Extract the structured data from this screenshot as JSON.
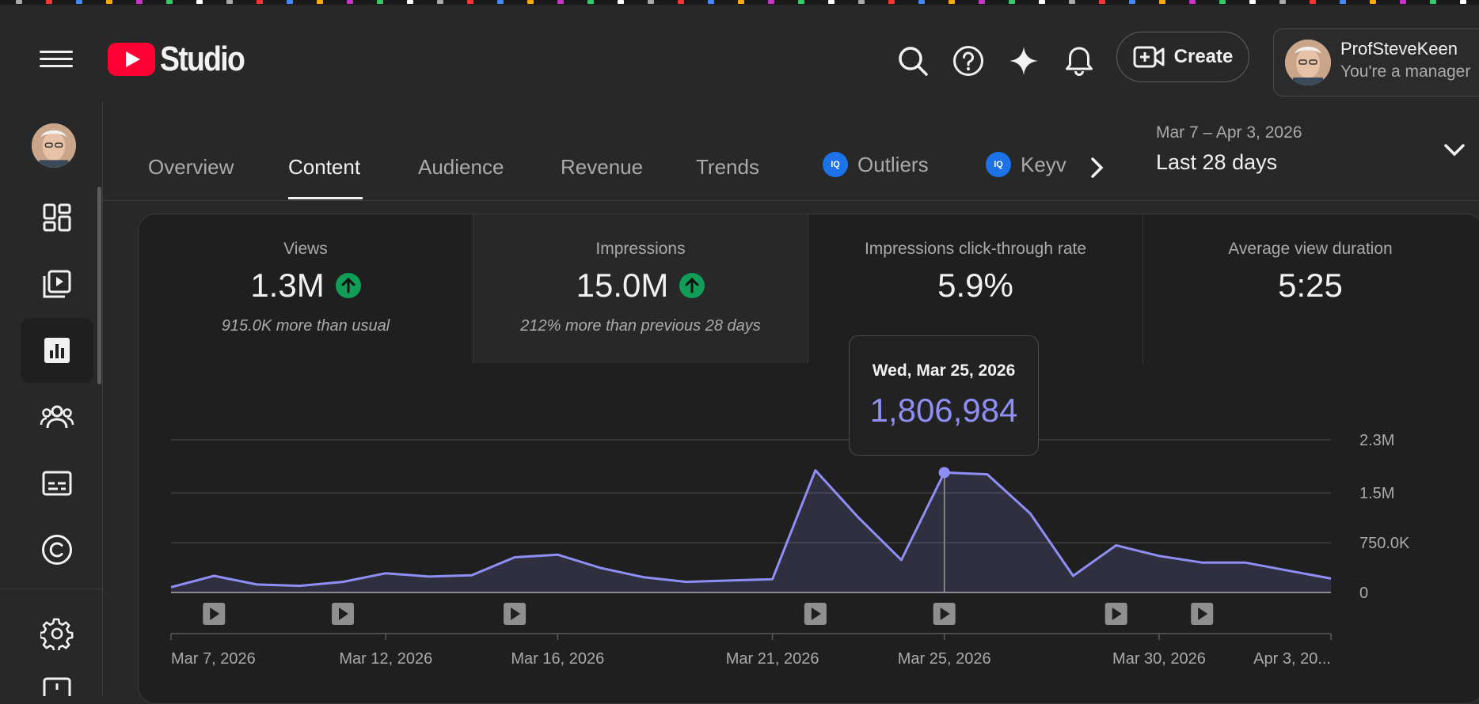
{
  "app": {
    "logo_text": "Studio"
  },
  "header": {
    "create_label": "Create",
    "account_name": "ProfSteveKeen",
    "account_role": "You're a manager"
  },
  "tabs": [
    {
      "label": "Overview",
      "active": false,
      "badge": false
    },
    {
      "label": "Content",
      "active": true,
      "badge": false
    },
    {
      "label": "Audience",
      "active": false,
      "badge": false
    },
    {
      "label": "Revenue",
      "active": false,
      "badge": false
    },
    {
      "label": "Trends",
      "active": false,
      "badge": false
    },
    {
      "label": "Outliers",
      "active": false,
      "badge": true
    },
    {
      "label": "Keyv",
      "active": false,
      "badge": true
    }
  ],
  "date_range": {
    "span": "Mar 7 – Apr 3, 2026",
    "label": "Last 28 days"
  },
  "metrics": [
    {
      "title": "Views",
      "value": "1.3M",
      "trend": "up",
      "sub": "915.0K more than usual"
    },
    {
      "title": "Impressions",
      "value": "15.0M",
      "trend": "up",
      "sub": "212% more than previous 28 days"
    },
    {
      "title": "Impressions click-through rate",
      "value": "5.9%",
      "trend": "none",
      "sub": ""
    },
    {
      "title": "Average view duration",
      "value": "5:25",
      "trend": "none",
      "sub": ""
    }
  ],
  "tooltip": {
    "date": "Wed, Mar 25, 2026",
    "value": "1,806,984"
  },
  "colors": {
    "line": "#8e8ef5",
    "accent_red": "#ff0033",
    "up_green": "#0f9d58",
    "iq_blue": "#1e72e8"
  },
  "chart_data": {
    "type": "area",
    "x": [
      "Mar 7, 2026",
      "Mar 8, 2026",
      "Mar 9, 2026",
      "Mar 10, 2026",
      "Mar 11, 2026",
      "Mar 12, 2026",
      "Mar 13, 2026",
      "Mar 14, 2026",
      "Mar 15, 2026",
      "Mar 16, 2026",
      "Mar 17, 2026",
      "Mar 18, 2026",
      "Mar 19, 2026",
      "Mar 20, 2026",
      "Mar 21, 2026",
      "Mar 22, 2026",
      "Mar 23, 2026",
      "Mar 24, 2026",
      "Mar 25, 2026",
      "Mar 26, 2026",
      "Mar 27, 2026",
      "Mar 28, 2026",
      "Mar 29, 2026",
      "Mar 30, 2026",
      "Mar 31, 2026",
      "Apr 1, 2026",
      "Apr 2, 2026",
      "Apr 3, 2026"
    ],
    "series": [
      {
        "values": [
          80000,
          250000,
          120000,
          100000,
          160000,
          290000,
          240000,
          260000,
          530000,
          570000,
          370000,
          230000,
          160000,
          180000,
          200000,
          1840000,
          1130000,
          490000,
          1806984,
          1780000,
          1190000,
          250000,
          710000,
          550000,
          450000,
          450000,
          330000,
          210000
        ]
      }
    ],
    "ylim": [
      0,
      2300000
    ],
    "yticks": [
      0,
      750000,
      1500000,
      2300000
    ],
    "ytick_labels": [
      "0",
      "750.0K",
      "1.5M",
      "2.3M"
    ],
    "xtick_labels": [
      {
        "label": "Mar 7, 2026",
        "index": 0
      },
      {
        "label": "Mar 12, 2026",
        "index": 5
      },
      {
        "label": "Mar 16, 2026",
        "index": 9
      },
      {
        "label": "Mar 21, 2026",
        "index": 14
      },
      {
        "label": "Mar 25, 2026",
        "index": 18
      },
      {
        "label": "Mar 30, 2026",
        "index": 23
      },
      {
        "label": "Apr 3, 20...",
        "index": 27
      }
    ],
    "video_markers": [
      1,
      4,
      8,
      15,
      18,
      22,
      24
    ],
    "highlight_index": 18,
    "grid": true
  }
}
